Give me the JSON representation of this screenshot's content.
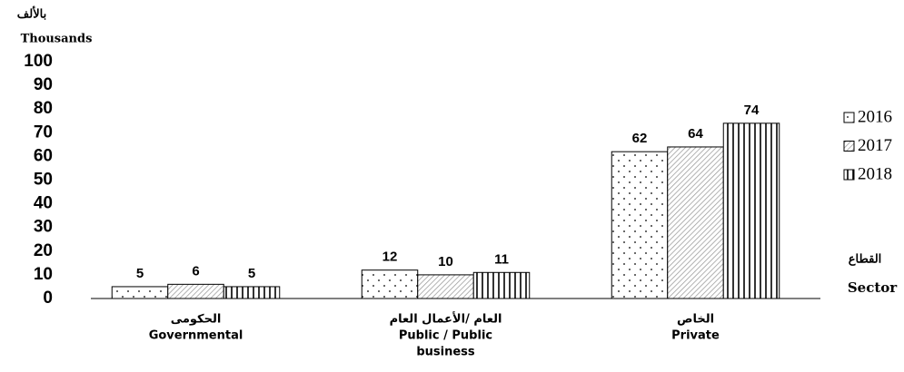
{
  "chart_data": {
    "type": "bar",
    "y_label": [
      "بالألف",
      "Thousands"
    ],
    "x_label": [
      "القطاع",
      "Sector"
    ],
    "categories": [
      [
        "الحكومى",
        "Governmental"
      ],
      [
        "العام /الأعمال العام",
        "Public / Public",
        "business"
      ],
      [
        "الخاص",
        "Private"
      ]
    ],
    "series": [
      {
        "name": "2016",
        "color": "#000000",
        "pattern": "dots",
        "values": [
          5,
          12,
          62
        ]
      },
      {
        "name": "2017",
        "color": "#000000",
        "pattern": "diagonal",
        "values": [
          6,
          10,
          64
        ]
      },
      {
        "name": "2018",
        "color": "#000000",
        "pattern": "vertical",
        "values": [
          5,
          11,
          74
        ]
      }
    ],
    "ylim": [
      0,
      100
    ],
    "yticks": [
      0,
      10,
      20,
      30,
      40,
      50,
      60,
      70,
      80,
      90,
      100
    ],
    "grid": false,
    "legend": "right",
    "data_labels": true
  }
}
